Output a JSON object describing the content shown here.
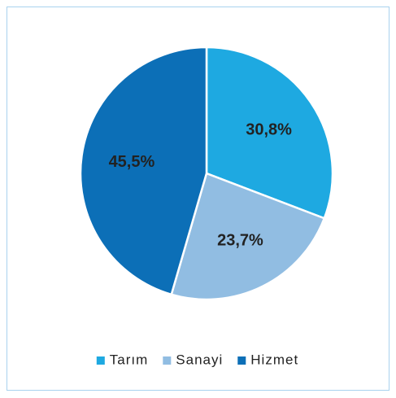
{
  "chart_data": {
    "type": "pie",
    "categories": [
      "Tarım",
      "Sanayi",
      "Hizmet"
    ],
    "values": [
      30.8,
      23.7,
      45.5
    ],
    "value_labels": [
      "30,8%",
      "23,7%",
      "45,5%"
    ],
    "colors": [
      "#1ea9e1",
      "#91bde2",
      "#0c6fb7"
    ],
    "legend": "bottom"
  }
}
